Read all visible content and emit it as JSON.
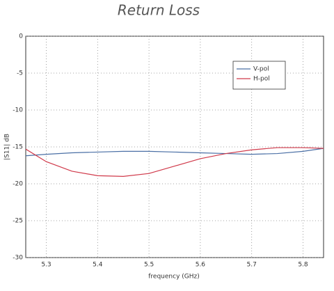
{
  "chart_data": {
    "type": "line",
    "title": "Return Loss",
    "x_label": "frequency (GHz)",
    "y_label": "|S11| dB",
    "x": [
      5.26,
      5.3,
      5.35,
      5.4,
      5.45,
      5.5,
      5.55,
      5.6,
      5.65,
      5.7,
      5.75,
      5.8,
      5.84
    ],
    "series": [
      {
        "name": "V-pol",
        "color": "#4a6fa5",
        "values": [
          -16.2,
          -16.0,
          -15.8,
          -15.7,
          -15.6,
          -15.6,
          -15.7,
          -15.8,
          -15.9,
          -16.0,
          -15.9,
          -15.6,
          -15.2
        ]
      },
      {
        "name": "H-pol",
        "color": "#d0394a",
        "values": [
          -15.3,
          -17.0,
          -18.3,
          -18.9,
          -19.0,
          -18.6,
          -17.6,
          -16.6,
          -15.9,
          -15.4,
          -15.1,
          -15.1,
          -15.2
        ]
      }
    ],
    "xlim": [
      5.26,
      5.84
    ],
    "xticks": [
      5.3,
      5.4,
      5.5,
      5.6,
      5.7,
      5.8
    ],
    "ylim": [
      -30,
      0
    ],
    "yticks": [
      -30,
      -25,
      -20,
      -15,
      -10,
      -5,
      0
    ],
    "grid": true,
    "legend": "upper-right"
  }
}
